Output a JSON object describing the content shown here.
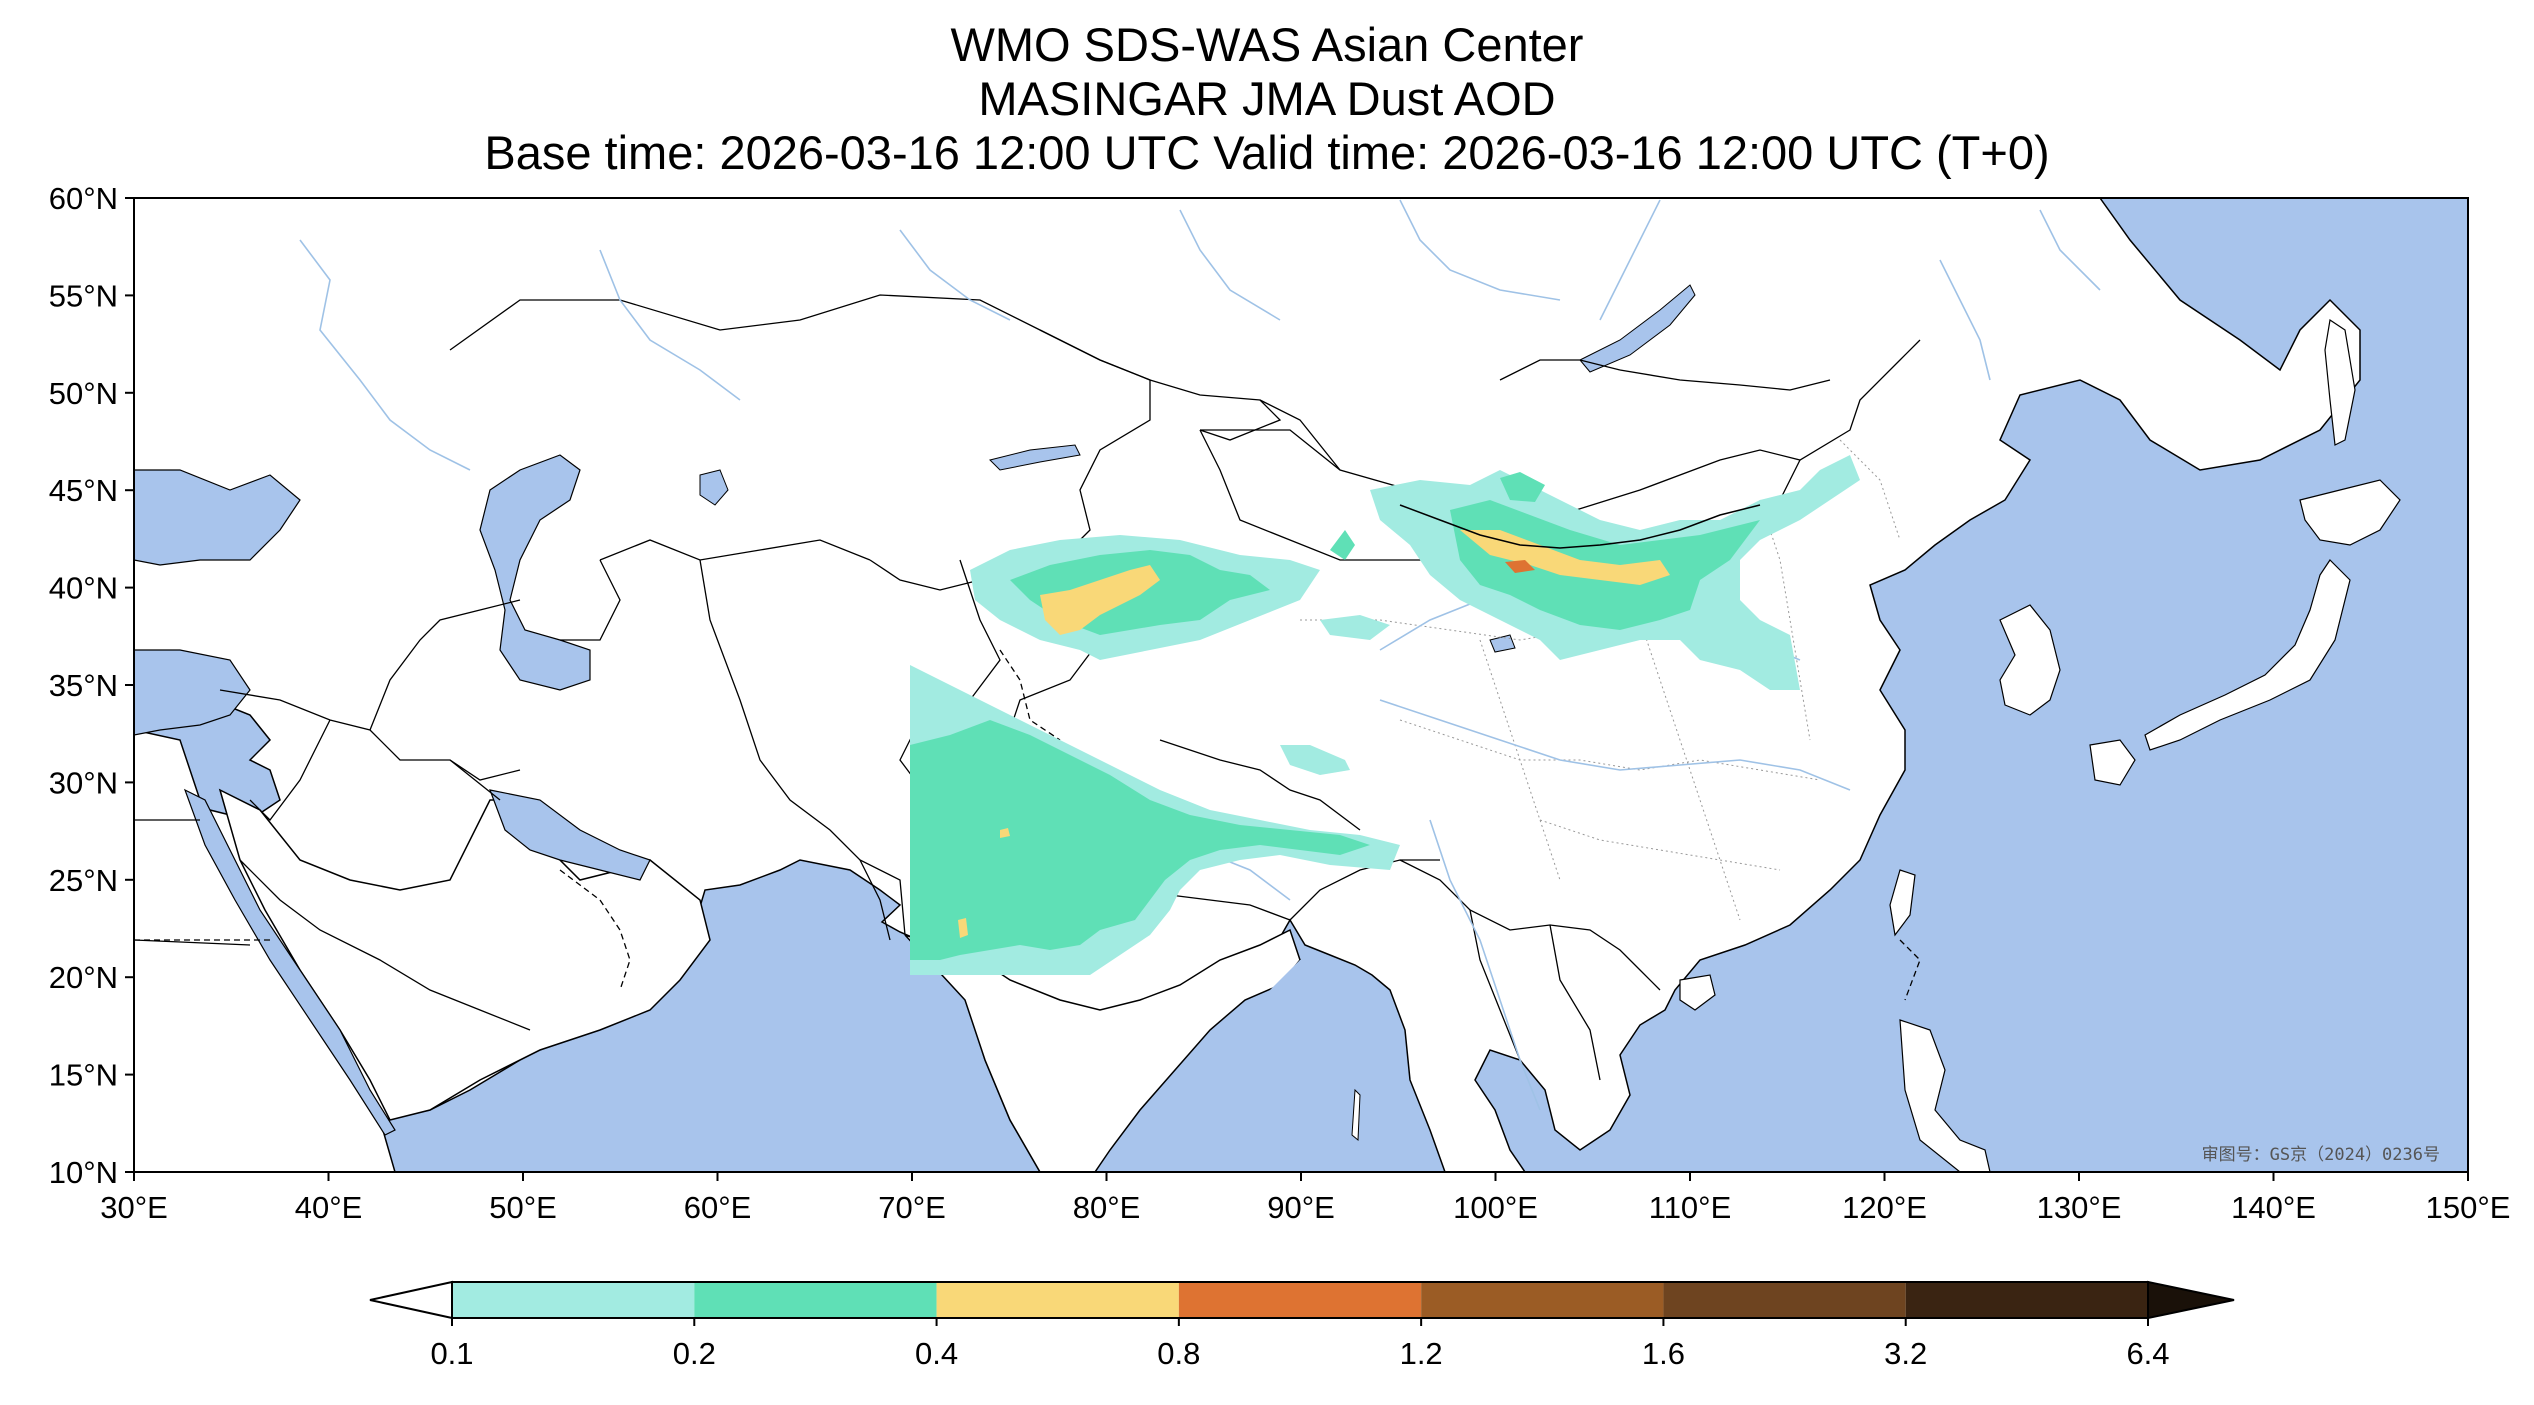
{
  "title": {
    "line1": "WMO SDS-WAS Asian Center",
    "line2": "MASINGAR JMA Dust AOD",
    "line3": "Base time: 2026-03-16 12:00 UTC Valid time: 2026-03-16 12:00 UTC (T+0)"
  },
  "map": {
    "lon_range": [
      30,
      150
    ],
    "lat_range": [
      10,
      60
    ],
    "lon_ticks": [
      "30°E",
      "40°E",
      "50°E",
      "60°E",
      "70°E",
      "80°E",
      "90°E",
      "100°E",
      "110°E",
      "120°E",
      "130°E",
      "140°E",
      "150°E"
    ],
    "lat_ticks": [
      "60°N",
      "55°N",
      "50°N",
      "45°N",
      "40°N",
      "35°N",
      "30°N",
      "25°N",
      "20°N",
      "15°N",
      "10°N"
    ],
    "ocean_color": "#a8c4ec",
    "land_color": "#ffffff",
    "approval_stamp": "审图号：GS京（2024）0236号"
  },
  "colorbar": {
    "levels": [
      "0.1",
      "0.2",
      "0.4",
      "0.8",
      "1.2",
      "1.6",
      "3.2",
      "6.4"
    ],
    "colors": [
      "#a2ebe1",
      "#5fe0b6",
      "#f9d878",
      "#de7332",
      "#9b5c25",
      "#6e4420",
      "#3a2412",
      "#1a1109"
    ],
    "extend": "both"
  }
}
